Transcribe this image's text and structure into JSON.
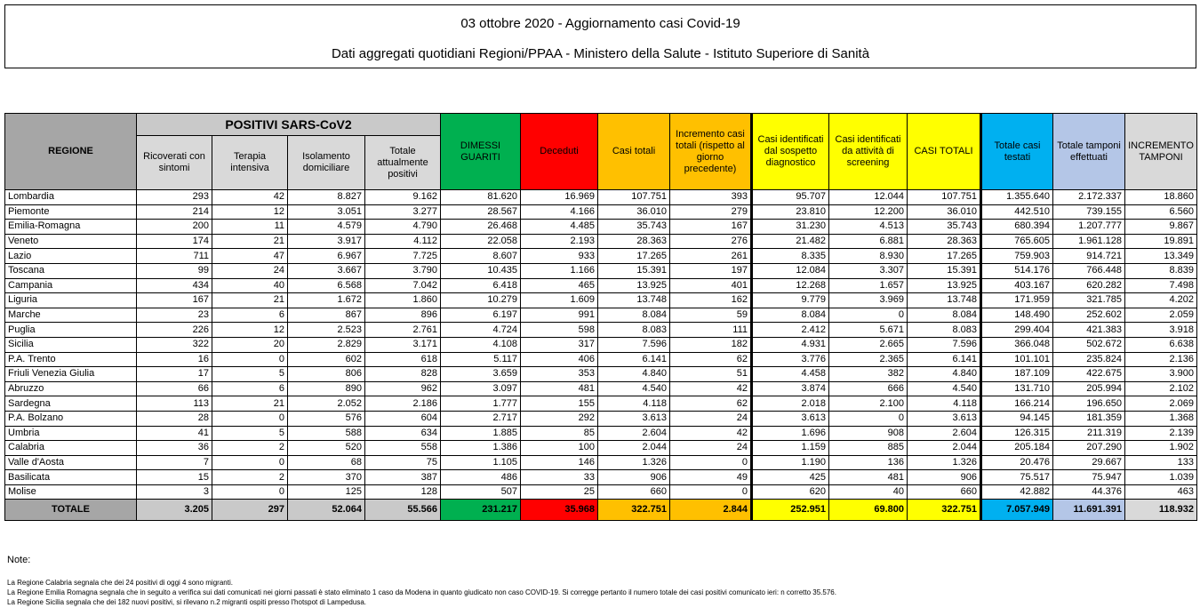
{
  "title": "03 ottobre 2020 - Aggiornamento casi Covid-19",
  "subtitle": "Dati aggregati quotidiani Regioni/PPAA - Ministero della Salute - Istituto Superiore di Sanità",
  "table": {
    "region_header": "REGIONE",
    "group_header": "POSITIVI SARS-CoV2",
    "columns": [
      "Ricoverati con sintomi",
      "Terapia intensiva",
      "Isolamento domiciliare",
      "Totale attualmente positivi",
      "DIMESSI GUARITI",
      "Deceduti",
      "Casi totali",
      "Incremento casi totali (rispetto al giorno precedente)",
      "Casi identificati dal sospetto diagnostico",
      "Casi identificati da attività di screening",
      "CASI TOTALI",
      "Totale casi testati",
      "Totale tamponi effettuati",
      "INCREMENTO TAMPONI"
    ],
    "colors": {
      "region": "#a6a6a6",
      "positivi": "#c9c9c9",
      "dimessi": "#00b050",
      "deceduti": "#ff0000",
      "casi": "#ffc000",
      "identificati": "#ffff00",
      "testati": "#00b0f0",
      "tamponi": "#b4c6e7",
      "incremento_tamponi": "#d9d9d9"
    },
    "rows": [
      [
        "Lombardia",
        "293",
        "42",
        "8.827",
        "9.162",
        "81.620",
        "16.969",
        "107.751",
        "393",
        "95.707",
        "12.044",
        "107.751",
        "1.355.640",
        "2.172.337",
        "18.860"
      ],
      [
        "Piemonte",
        "214",
        "12",
        "3.051",
        "3.277",
        "28.567",
        "4.166",
        "36.010",
        "279",
        "23.810",
        "12.200",
        "36.010",
        "442.510",
        "739.155",
        "6.560"
      ],
      [
        "Emilia-Romagna",
        "200",
        "11",
        "4.579",
        "4.790",
        "26.468",
        "4.485",
        "35.743",
        "167",
        "31.230",
        "4.513",
        "35.743",
        "680.394",
        "1.207.777",
        "9.867"
      ],
      [
        "Veneto",
        "174",
        "21",
        "3.917",
        "4.112",
        "22.058",
        "2.193",
        "28.363",
        "276",
        "21.482",
        "6.881",
        "28.363",
        "765.605",
        "1.961.128",
        "19.891"
      ],
      [
        "Lazio",
        "711",
        "47",
        "6.967",
        "7.725",
        "8.607",
        "933",
        "17.265",
        "261",
        "8.335",
        "8.930",
        "17.265",
        "759.903",
        "914.721",
        "13.349"
      ],
      [
        "Toscana",
        "99",
        "24",
        "3.667",
        "3.790",
        "10.435",
        "1.166",
        "15.391",
        "197",
        "12.084",
        "3.307",
        "15.391",
        "514.176",
        "766.448",
        "8.839"
      ],
      [
        "Campania",
        "434",
        "40",
        "6.568",
        "7.042",
        "6.418",
        "465",
        "13.925",
        "401",
        "12.268",
        "1.657",
        "13.925",
        "403.167",
        "620.282",
        "7.498"
      ],
      [
        "Liguria",
        "167",
        "21",
        "1.672",
        "1.860",
        "10.279",
        "1.609",
        "13.748",
        "162",
        "9.779",
        "3.969",
        "13.748",
        "171.959",
        "321.785",
        "4.202"
      ],
      [
        "Marche",
        "23",
        "6",
        "867",
        "896",
        "6.197",
        "991",
        "8.084",
        "59",
        "8.084",
        "0",
        "8.084",
        "148.490",
        "252.602",
        "2.059"
      ],
      [
        "Puglia",
        "226",
        "12",
        "2.523",
        "2.761",
        "4.724",
        "598",
        "8.083",
        "111",
        "2.412",
        "5.671",
        "8.083",
        "299.404",
        "421.383",
        "3.918"
      ],
      [
        "Sicilia",
        "322",
        "20",
        "2.829",
        "3.171",
        "4.108",
        "317",
        "7.596",
        "182",
        "4.931",
        "2.665",
        "7.596",
        "366.048",
        "502.672",
        "6.638"
      ],
      [
        "P.A. Trento",
        "16",
        "0",
        "602",
        "618",
        "5.117",
        "406",
        "6.141",
        "62",
        "3.776",
        "2.365",
        "6.141",
        "101.101",
        "235.824",
        "2.136"
      ],
      [
        "Friuli Venezia Giulia",
        "17",
        "5",
        "806",
        "828",
        "3.659",
        "353",
        "4.840",
        "51",
        "4.458",
        "382",
        "4.840",
        "187.109",
        "422.675",
        "3.900"
      ],
      [
        "Abruzzo",
        "66",
        "6",
        "890",
        "962",
        "3.097",
        "481",
        "4.540",
        "42",
        "3.874",
        "666",
        "4.540",
        "131.710",
        "205.994",
        "2.102"
      ],
      [
        "Sardegna",
        "113",
        "21",
        "2.052",
        "2.186",
        "1.777",
        "155",
        "4.118",
        "62",
        "2.018",
        "2.100",
        "4.118",
        "166.214",
        "196.650",
        "2.069"
      ],
      [
        "P.A. Bolzano",
        "28",
        "0",
        "576",
        "604",
        "2.717",
        "292",
        "3.613",
        "24",
        "3.613",
        "0",
        "3.613",
        "94.145",
        "181.359",
        "1.368"
      ],
      [
        "Umbria",
        "41",
        "5",
        "588",
        "634",
        "1.885",
        "85",
        "2.604",
        "42",
        "1.696",
        "908",
        "2.604",
        "126.315",
        "211.319",
        "2.139"
      ],
      [
        "Calabria",
        "36",
        "2",
        "520",
        "558",
        "1.386",
        "100",
        "2.044",
        "24",
        "1.159",
        "885",
        "2.044",
        "205.184",
        "207.290",
        "1.902"
      ],
      [
        "Valle d'Aosta",
        "7",
        "0",
        "68",
        "75",
        "1.105",
        "146",
        "1.326",
        "0",
        "1.190",
        "136",
        "1.326",
        "20.476",
        "29.667",
        "133"
      ],
      [
        "Basilicata",
        "15",
        "2",
        "370",
        "387",
        "486",
        "33",
        "906",
        "49",
        "425",
        "481",
        "906",
        "75.517",
        "75.947",
        "1.039"
      ],
      [
        "Molise",
        "3",
        "0",
        "125",
        "128",
        "507",
        "25",
        "660",
        "0",
        "620",
        "40",
        "660",
        "42.882",
        "44.376",
        "463"
      ]
    ],
    "total": [
      "TOTALE",
      "3.205",
      "297",
      "52.064",
      "55.566",
      "231.217",
      "35.968",
      "322.751",
      "2.844",
      "252.951",
      "69.800",
      "322.751",
      "7.057.949",
      "11.691.391",
      "118.932"
    ]
  },
  "notes": {
    "label": "Note:",
    "items": [
      "La Regione Calabria segnala che dei 24 positivi di oggi 4 sono migranti.",
      "La Regione Emilia Romagna segnala che in seguito a verifica sui dati comunicati nei giorni passati è stato eliminato 1 caso da Modena in quanto giudicato non caso COVID-19. Si corregge pertanto il numero totale dei casi positivi comunicato ieri: n corretto 35.576.",
      "La Regione Sicilia segnala che dei 182 nuovi positivi, si rilevano n.2 migranti ospiti presso l'hotspot di Lampedusa."
    ]
  }
}
